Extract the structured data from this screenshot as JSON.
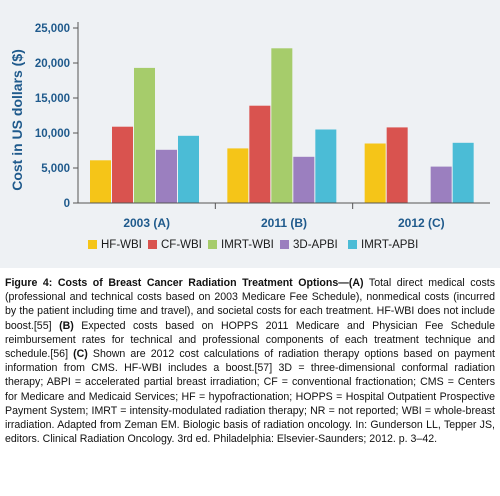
{
  "chart_data": {
    "type": "bar",
    "ylabel": "Cost in US dollars ($)",
    "ylim": [
      0,
      25000
    ],
    "yticks": [
      0,
      5000,
      10000,
      15000,
      20000,
      25000
    ],
    "ytick_labels": [
      "0",
      "5,000",
      "10,000",
      "15,000",
      "20,000",
      "25,000"
    ],
    "categories": [
      "2003 (A)",
      "2011 (B)",
      "2012 (C)"
    ],
    "grid": false,
    "legend_position": "bottom",
    "series": [
      {
        "name": "HF-WBI",
        "color": "#f5c518",
        "values": [
          6100,
          7800,
          8500
        ]
      },
      {
        "name": "CF-WBI",
        "color": "#d9534f",
        "values": [
          10900,
          13900,
          10800
        ]
      },
      {
        "name": "IMRT-WBI",
        "color": "#a6cc6b",
        "values": [
          19300,
          22100,
          null
        ]
      },
      {
        "name": "3D-APBI",
        "color": "#9b7fbf",
        "values": [
          7600,
          6600,
          5200
        ]
      },
      {
        "name": "IMRT-APBI",
        "color": "#4bbcd6",
        "values": [
          9600,
          10500,
          8600
        ]
      }
    ]
  },
  "caption": {
    "figure_label": "Figure 4: Costs of Breast Cancer Radiation Treatment Options—(A)",
    "part_a": " Total direct medical costs (professional and technical costs based on 2003 Medicare Fee Schedule), nonmedical costs (incurred by the patient including time and travel), and societal costs for each treatment. HF-WBI does not include boost.[55] ",
    "b_label": "(B)",
    "part_b": " Expected costs based on HOPPS 2011 Medicare and Physician Fee Schedule reimbursement rates for technical and professional components of each treatment technique and schedule.[56] ",
    "c_label": "(C)",
    "part_c": " Shown are 2012 cost calculations of radiation therapy options based on payment information from CMS. HF-WBI includes a boost.[57] 3D = three-dimensional conformal radiation therapy; ABPI = accelerated partial breast irradiation; CF = conventional fractionation; CMS = Centers for Medicare and Medicaid Services; HF = hypofractionation; HOPPS = Hospital Outpatient Prospective Payment System; IMRT = intensity-modulated radiation therapy; NR = not reported; WBI = whole-breast irradiation. Adapted from Zeman EM. Biologic basis of radiation oncology. In: Gunderson LL, Tepper JS, editors. Clinical Radiation Oncology. 3rd ed. Philadelphia: Elsevier-Saunders; 2012. p. 3–42."
  }
}
